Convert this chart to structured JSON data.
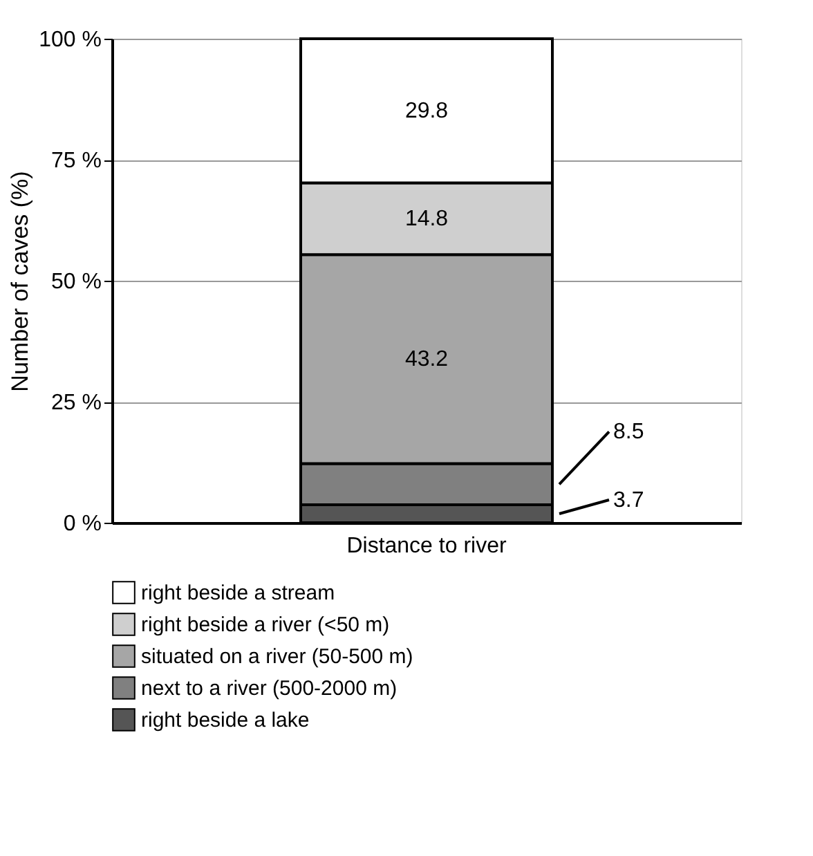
{
  "chart_data": {
    "type": "bar",
    "stacked": true,
    "ylabel": "Number of caves (%)",
    "categories": [
      "Distance to river"
    ],
    "series": [
      {
        "name": "right beside a lake",
        "color": "#555555",
        "values": [
          3.7
        ]
      },
      {
        "name": "next to a river (500-2000 m)",
        "color": "#808080",
        "values": [
          8.5
        ]
      },
      {
        "name": "situated on a river (50-500 m)",
        "color": "#a6a6a6",
        "values": [
          43.2
        ]
      },
      {
        "name": "right beside a river (<50 m)",
        "color": "#cfcfcf",
        "values": [
          14.8
        ]
      },
      {
        "name": "right beside a stream",
        "color": "#ffffff",
        "values": [
          29.8
        ]
      }
    ],
    "ylim": [
      0,
      100
    ],
    "yticks": [
      {
        "value": 0,
        "label": "0 %"
      },
      {
        "value": 25,
        "label": "25 %"
      },
      {
        "value": 50,
        "label": "50 %"
      },
      {
        "value": 75,
        "label": "75 %"
      },
      {
        "value": 100,
        "label": "100 %"
      }
    ],
    "grid": "y",
    "legend": "bottom",
    "data_labels": true
  }
}
